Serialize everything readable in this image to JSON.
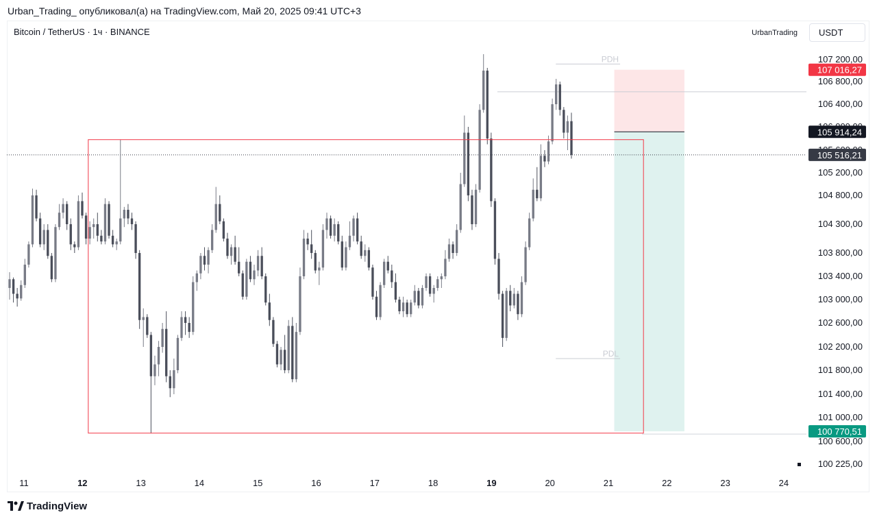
{
  "header": {
    "attribution": "Urban_Trading_ опубликовал(а) на TradingView.com, Май 20, 2025 09:41 UTC+3"
  },
  "chart_header": {
    "symbol": "Bitcoin / TetherUS · 1ч · BINANCE",
    "author": "UrbanTrading",
    "currency": "USDT"
  },
  "footer": {
    "logo_text": "TradingView"
  },
  "colors": {
    "up": "#787b86",
    "down": "#4a4e5a",
    "box": "#f23645",
    "stop_zone": "#fde6e7",
    "target_zone": "#dff2ef",
    "stop_label": "#f23645",
    "target_label": "#089981",
    "entry_label": "#131722",
    "current_label": "#363a45"
  },
  "chart_data": {
    "type": "candlestick",
    "timeframe": "1h",
    "x_tick_labels": [
      {
        "label": "11",
        "day": 11,
        "bold": false
      },
      {
        "label": "12",
        "day": 12,
        "bold": true
      },
      {
        "label": "13",
        "day": 13,
        "bold": false
      },
      {
        "label": "14",
        "day": 14,
        "bold": false
      },
      {
        "label": "15",
        "day": 15,
        "bold": false
      },
      {
        "label": "16",
        "day": 16,
        "bold": false
      },
      {
        "label": "17",
        "day": 17,
        "bold": false
      },
      {
        "label": "18",
        "day": 18,
        "bold": false
      },
      {
        "label": "19",
        "day": 19,
        "bold": true
      },
      {
        "label": "20",
        "day": 20,
        "bold": false
      },
      {
        "label": "21",
        "day": 21,
        "bold": false
      },
      {
        "label": "22",
        "day": 22,
        "bold": false
      },
      {
        "label": "23",
        "day": 23,
        "bold": false
      },
      {
        "label": "24",
        "day": 24,
        "bold": false
      }
    ],
    "y_tick_labels": [
      {
        "value": 107200,
        "label": "107 200,00"
      },
      {
        "value": 106800,
        "label": "106 800,00"
      },
      {
        "value": 106400,
        "label": "106 400,00"
      },
      {
        "value": 106000,
        "label": "106 000,00"
      },
      {
        "value": 105600,
        "label": "105 600,00"
      },
      {
        "value": 105200,
        "label": "105 200,00"
      },
      {
        "value": 104800,
        "label": "104 800,00"
      },
      {
        "value": 104300,
        "label": "104 300,00"
      },
      {
        "value": 103800,
        "label": "103 800,00"
      },
      {
        "value": 103400,
        "label": "103 400,00"
      },
      {
        "value": 103000,
        "label": "103 000,00"
      },
      {
        "value": 102600,
        "label": "102 600,00"
      },
      {
        "value": 102200,
        "label": "102 200,00"
      },
      {
        "value": 101800,
        "label": "101 800,00"
      },
      {
        "value": 101400,
        "label": "101 400,00"
      },
      {
        "value": 101000,
        "label": "101 000,00"
      },
      {
        "value": 100600,
        "label": "100 600,00"
      },
      {
        "value": 100225,
        "label": "100 225,00"
      }
    ],
    "price_labels": [
      {
        "name": "stop",
        "value": 107016.27,
        "label": "107 016,27"
      },
      {
        "name": "entry",
        "value": 105914.24,
        "label": "105 914,24"
      },
      {
        "name": "current",
        "value": 105516.21,
        "label": "105 516,21"
      },
      {
        "name": "target",
        "value": 100770.51,
        "label": "100 770,51"
      }
    ],
    "annotations": [
      {
        "label": "PDH",
        "value": 107120,
        "x_from": 20.1,
        "x_to": 21.2
      },
      {
        "label": "PDL",
        "value": 102000,
        "x_from": 20.1,
        "x_to": 21.2
      }
    ],
    "range_box": {
      "x_from": 12.1,
      "x_to": 21.6,
      "y_top": 105780,
      "y_bottom": 100740
    },
    "horizontal_line": {
      "value": 106620,
      "x_from": 19.1
    },
    "position": {
      "type": "short",
      "x_from": 21.1,
      "x_to": 22.3,
      "entry": 105914.24,
      "stop": 107016.27,
      "target": 100770.51
    },
    "current_price": 105516.21,
    "ohlc_series": [
      [
        103200,
        103470,
        103000,
        103350
      ],
      [
        103350,
        103380,
        102950,
        103100
      ],
      [
        103100,
        103200,
        102880,
        103020
      ],
      [
        103020,
        103330,
        102980,
        103250
      ],
      [
        103250,
        103700,
        103200,
        103600
      ],
      [
        103600,
        104000,
        103550,
        103950
      ],
      [
        103950,
        104920,
        103900,
        104800
      ],
      [
        104800,
        104900,
        104350,
        104400
      ],
      [
        104400,
        104500,
        103900,
        103950
      ],
      [
        103950,
        104300,
        103850,
        104200
      ],
      [
        104200,
        104300,
        103700,
        103750
      ],
      [
        103750,
        103800,
        103300,
        103350
      ],
      [
        103350,
        104300,
        103300,
        104250
      ],
      [
        104250,
        104650,
        104200,
        104500
      ],
      [
        104500,
        104750,
        104400,
        104650
      ],
      [
        104650,
        104700,
        104200,
        104300
      ],
      [
        104300,
        104400,
        103850,
        103950
      ],
      [
        103950,
        104000,
        103800,
        103900
      ],
      [
        103900,
        104800,
        103850,
        104700
      ],
      [
        104700,
        104850,
        104400,
        104450
      ],
      [
        104450,
        104500,
        103950,
        104050
      ],
      [
        104050,
        104350,
        103950,
        104250
      ],
      [
        104250,
        104400,
        104050,
        104300
      ],
      [
        104300,
        104500,
        104000,
        104100
      ],
      [
        104100,
        104200,
        103950,
        104000
      ],
      [
        104000,
        104750,
        103950,
        104650
      ],
      [
        104650,
        104700,
        104050,
        104100
      ],
      [
        104100,
        104200,
        103900,
        103950
      ],
      [
        103950,
        104050,
        103850,
        104000
      ],
      [
        104000,
        105780,
        103950,
        104400
      ],
      [
        104400,
        104600,
        104250,
        104550
      ],
      [
        104550,
        104650,
        104300,
        104400
      ],
      [
        104400,
        104500,
        104200,
        104300
      ],
      [
        104300,
        104350,
        103700,
        103800
      ],
      [
        103800,
        103850,
        102500,
        102650
      ],
      [
        102650,
        102850,
        102200,
        102700
      ],
      [
        102700,
        102750,
        102350,
        102400
      ],
      [
        102400,
        102450,
        100740,
        101700
      ],
      [
        101700,
        102050,
        101550,
        101900
      ],
      [
        101900,
        102300,
        101700,
        102200
      ],
      [
        102200,
        102600,
        102100,
        102500
      ],
      [
        102500,
        102800,
        101600,
        101700
      ],
      [
        101700,
        101800,
        101350,
        101500
      ],
      [
        101500,
        102000,
        101400,
        101800
      ],
      [
        101800,
        102400,
        101750,
        102350
      ],
      [
        102350,
        102800,
        102300,
        102700
      ],
      [
        102700,
        102800,
        102400,
        102600
      ],
      [
        102600,
        102700,
        102350,
        102450
      ],
      [
        102450,
        103400,
        102400,
        103300
      ],
      [
        103300,
        103500,
        103150,
        103450
      ],
      [
        103450,
        103800,
        103350,
        103750
      ],
      [
        103750,
        103900,
        103500,
        103600
      ],
      [
        103600,
        103900,
        103450,
        103850
      ],
      [
        103850,
        104300,
        103800,
        104200
      ],
      [
        104200,
        104950,
        104150,
        104650
      ],
      [
        104650,
        104800,
        104300,
        104350
      ],
      [
        104350,
        104400,
        104000,
        104050
      ],
      [
        104050,
        104150,
        103700,
        103750
      ],
      [
        103750,
        103950,
        103600,
        103900
      ],
      [
        103900,
        104100,
        103600,
        103650
      ],
      [
        103650,
        103900,
        103400,
        103450
      ],
      [
        103450,
        103500,
        103000,
        103050
      ],
      [
        103050,
        103700,
        103000,
        103650
      ],
      [
        103650,
        103750,
        103300,
        103350
      ],
      [
        103350,
        103600,
        103250,
        103500
      ],
      [
        103500,
        103850,
        103400,
        103750
      ],
      [
        103750,
        103900,
        103350,
        103400
      ],
      [
        103400,
        103450,
        102900,
        102950
      ],
      [
        102950,
        103100,
        102550,
        102650
      ],
      [
        102650,
        102700,
        102200,
        102250
      ],
      [
        102250,
        102300,
        101850,
        101900
      ],
      [
        101900,
        102200,
        101800,
        102150
      ],
      [
        102150,
        102400,
        101750,
        101800
      ],
      [
        101800,
        102650,
        101750,
        102550
      ],
      [
        102550,
        102700,
        101600,
        101650
      ],
      [
        101650,
        102600,
        101600,
        102450
      ],
      [
        102450,
        103550,
        102400,
        103400
      ],
      [
        103400,
        104200,
        103350,
        104050
      ],
      [
        104050,
        104150,
        103850,
        103950
      ],
      [
        103950,
        104200,
        103700,
        103800
      ],
      [
        103800,
        103850,
        103450,
        103500
      ],
      [
        103500,
        103650,
        103250,
        103550
      ],
      [
        103550,
        104300,
        103500,
        104200
      ],
      [
        104200,
        104500,
        104050,
        104400
      ],
      [
        104400,
        104450,
        104050,
        104100
      ],
      [
        104100,
        104400,
        104000,
        104300
      ],
      [
        104300,
        104350,
        103950,
        104000
      ],
      [
        104000,
        104100,
        103500,
        103550
      ],
      [
        103550,
        104000,
        103500,
        103900
      ],
      [
        103900,
        104350,
        103850,
        104100
      ],
      [
        104100,
        104450,
        104000,
        104400
      ],
      [
        104400,
        104500,
        103950,
        104000
      ],
      [
        104000,
        104100,
        103700,
        103750
      ],
      [
        103750,
        103950,
        103650,
        103850
      ],
      [
        103850,
        103900,
        103500,
        103550
      ],
      [
        103550,
        103600,
        103000,
        103050
      ],
      [
        103050,
        103150,
        102650,
        102700
      ],
      [
        102700,
        103300,
        102650,
        103250
      ],
      [
        103250,
        103700,
        103200,
        103650
      ],
      [
        103650,
        103750,
        103450,
        103500
      ],
      [
        103500,
        103600,
        103200,
        103300
      ],
      [
        103300,
        103450,
        102950,
        103000
      ],
      [
        103000,
        103050,
        102750,
        102800
      ],
      [
        102800,
        103050,
        102700,
        102950
      ],
      [
        102950,
        103000,
        102700,
        102750
      ],
      [
        102750,
        103000,
        102700,
        102950
      ],
      [
        102950,
        103250,
        102900,
        103150
      ],
      [
        103150,
        103200,
        102850,
        102900
      ],
      [
        102900,
        103250,
        102850,
        103200
      ],
      [
        103200,
        103450,
        103150,
        103400
      ],
      [
        103400,
        103450,
        103050,
        103100
      ],
      [
        103100,
        103250,
        102950,
        103200
      ],
      [
        103200,
        103400,
        103150,
        103350
      ],
      [
        103350,
        103450,
        103200,
        103400
      ],
      [
        103400,
        103850,
        103350,
        103700
      ],
      [
        103700,
        104050,
        103650,
        103950
      ],
      [
        103950,
        104000,
        103700,
        103800
      ],
      [
        103800,
        104300,
        103750,
        104200
      ],
      [
        104200,
        105200,
        104150,
        105000
      ],
      [
        105000,
        106200,
        104950,
        105900
      ],
      [
        105900,
        106000,
        104700,
        104800
      ],
      [
        104800,
        104900,
        104200,
        104300
      ],
      [
        104300,
        105000,
        104250,
        104900
      ],
      [
        104900,
        106400,
        104850,
        106300
      ],
      [
        106300,
        107300,
        106250,
        107000
      ],
      [
        107000,
        107050,
        105700,
        105800
      ],
      [
        105800,
        105900,
        104600,
        104700
      ],
      [
        104700,
        104750,
        103600,
        103700
      ],
      [
        103700,
        103800,
        103000,
        103100
      ],
      [
        103100,
        103150,
        102200,
        102350
      ],
      [
        102350,
        103200,
        102300,
        103150
      ],
      [
        103150,
        103250,
        102800,
        102900
      ],
      [
        102900,
        103200,
        102850,
        103100
      ],
      [
        103100,
        103150,
        102650,
        102750
      ],
      [
        102750,
        103400,
        102700,
        103300
      ],
      [
        103300,
        104000,
        103250,
        103900
      ],
      [
        103900,
        104500,
        103850,
        104400
      ],
      [
        104400,
        105100,
        104350,
        104900
      ],
      [
        104900,
        105300,
        104700,
        104750
      ],
      [
        104750,
        105700,
        104700,
        105500
      ],
      [
        105500,
        105600,
        105300,
        105400
      ],
      [
        105400,
        105850,
        105350,
        105750
      ],
      [
        105750,
        106500,
        105700,
        106400
      ],
      [
        106400,
        106850,
        106300,
        106750
      ],
      [
        106750,
        106800,
        106200,
        106300
      ],
      [
        106300,
        106350,
        105800,
        105900
      ],
      [
        105900,
        106200,
        105600,
        106100
      ],
      [
        106100,
        106250,
        105450,
        105516
      ]
    ]
  }
}
